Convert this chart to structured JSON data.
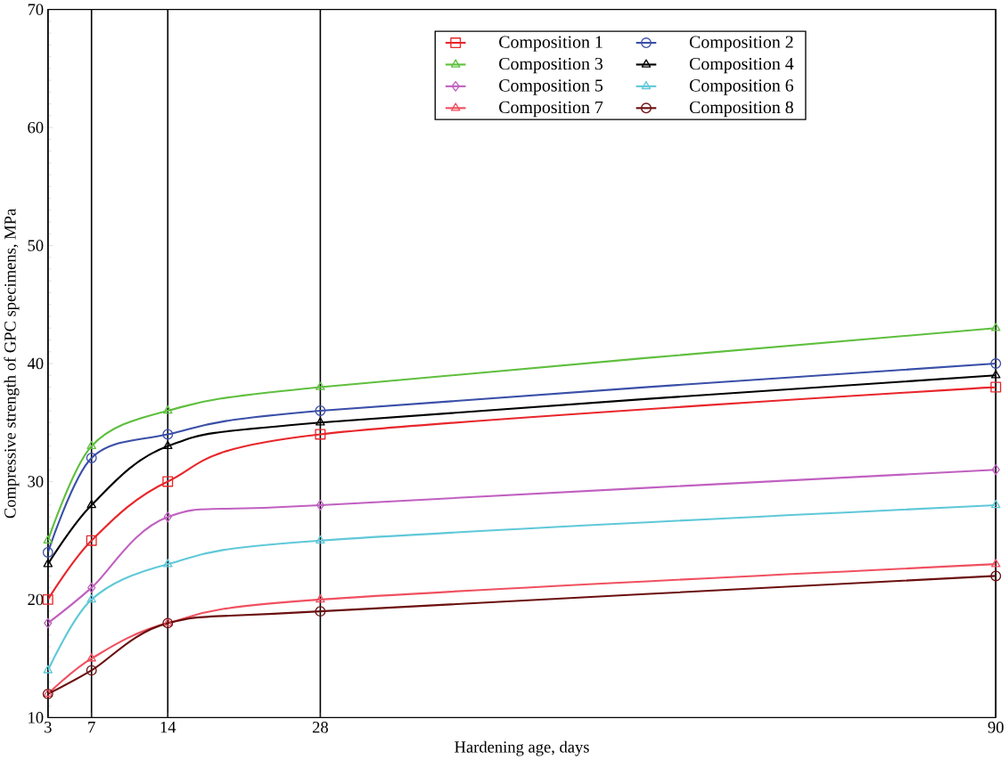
{
  "chart_data": {
    "type": "line",
    "xlabel": "Hardening age, days",
    "ylabel": "Compressive strength of GPC specimens, MPa",
    "x": [
      3,
      7,
      14,
      28,
      90
    ],
    "xlim": [
      3,
      90
    ],
    "xticks": [
      3,
      7,
      14,
      28,
      90
    ],
    "ylim": [
      10,
      70
    ],
    "yticks": [
      10,
      20,
      30,
      40,
      50,
      60,
      70
    ],
    "grid": "x",
    "legend": "top right",
    "line_style": "solid",
    "series": [
      {
        "name": "Composition 1",
        "color": "#e8262b",
        "marker": "square",
        "values": [
          20,
          25,
          30,
          34,
          38
        ]
      },
      {
        "name": "Composition 2",
        "color": "#3a4fa8",
        "marker": "circle",
        "values": [
          24,
          32,
          34,
          36,
          40
        ]
      },
      {
        "name": "Composition 3",
        "color": "#5fbf3f",
        "marker": "triangle",
        "values": [
          25,
          33,
          36,
          38,
          43
        ]
      },
      {
        "name": "Composition 4",
        "color": "#000000",
        "marker": "triangle",
        "values": [
          23,
          28,
          33,
          35,
          39
        ]
      },
      {
        "name": "Composition 5",
        "color": "#c060c0",
        "marker": "diamond",
        "values": [
          18,
          21,
          27,
          28,
          31
        ]
      },
      {
        "name": "Composition 6",
        "color": "#5fc8d8",
        "marker": "triangle",
        "values": [
          14,
          20,
          23,
          25,
          28
        ]
      },
      {
        "name": "Composition 7",
        "color": "#f05060",
        "marker": "triangle",
        "values": [
          12,
          15,
          18,
          20,
          23
        ]
      },
      {
        "name": "Composition 8",
        "color": "#6b0f0f",
        "marker": "circle",
        "values": [
          12,
          14,
          18,
          19,
          22
        ]
      }
    ]
  }
}
